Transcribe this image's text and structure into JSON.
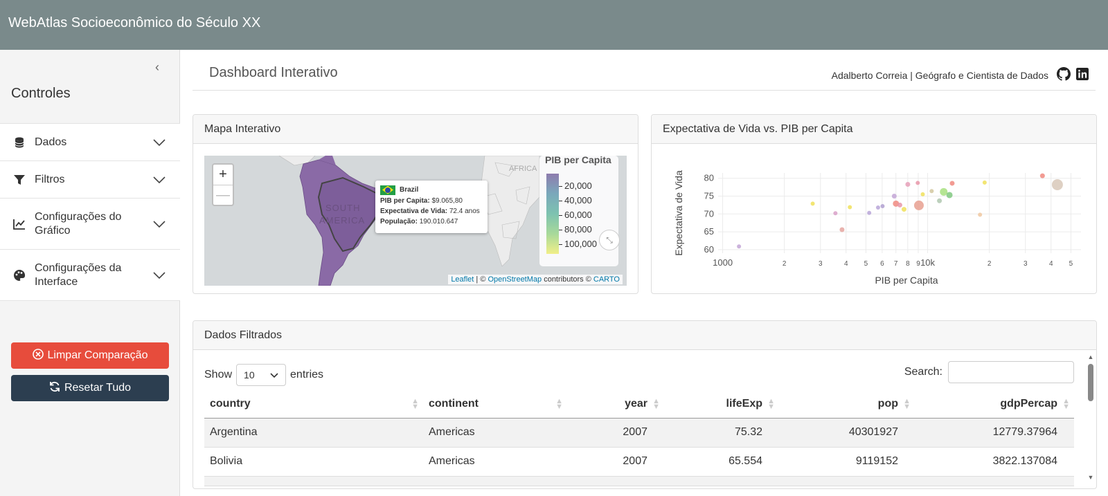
{
  "app": {
    "title": "WebAtlas Socioeconômico do Século XX"
  },
  "sidebar": {
    "collapse_icon": "chevron-left-icon",
    "title": "Controles",
    "sections": [
      {
        "label": "Dados",
        "icon": "database-icon"
      },
      {
        "label": "Filtros",
        "icon": "filter-icon"
      },
      {
        "label": "Configurações do Gráfico",
        "icon": "chart-line-icon"
      },
      {
        "label": "Configurações da Interface",
        "icon": "palette-icon"
      }
    ],
    "clear_button": "Limpar Comparação",
    "reset_button": "Resetar Tudo",
    "clear_color": "#e74c3c",
    "reset_color": "#2c3e50"
  },
  "header": {
    "title": "Dashboard Interativo",
    "author": "Adalberto Correia | Geógrafo e Cientista de Dados",
    "links": [
      "github-icon",
      "linkedin-icon"
    ]
  },
  "map_card": {
    "title": "Mapa Interativo",
    "zoom_in": "+",
    "zoom_out": "—",
    "labels": {
      "continent": "SOUTH AMERICA",
      "continent_line1": "SOUTH",
      "continent_line2": "AMERICA",
      "africa": "AFRICA"
    },
    "legend": {
      "title": "PIB per Capita",
      "ticks": [
        "20,000",
        "40,000",
        "60,000",
        "80,000",
        "100,000"
      ]
    },
    "tooltip": {
      "country": "Brazil",
      "gdp_label": "PIB per Capita:",
      "gdp_value": "$9.065,80",
      "life_label": "Expectativa de Vida:",
      "life_value": "72.4 anos",
      "pop_label": "População:",
      "pop_value": "190.010.647"
    },
    "attribution": {
      "leaflet": "Leaflet",
      "sep": " | © ",
      "osm": "OpenStreetMap",
      "contrib": " contributors © ",
      "carto": "CARTO"
    }
  },
  "scatter_card": {
    "title": "Expectativa de Vida vs. PIB per Capita"
  },
  "chart_data": {
    "type": "scatter",
    "title": "",
    "xlabel": "PIB per Capita",
    "ylabel": "Expectativa de Vida",
    "x_scale": "log",
    "xlim": [
      950,
      56000
    ],
    "ylim": [
      59,
      81.5
    ],
    "x_tick_labels": [
      {
        "v": 1000,
        "t": "1000"
      },
      {
        "v": 2000,
        "t": "2"
      },
      {
        "v": 3000,
        "t": "3"
      },
      {
        "v": 4000,
        "t": "4"
      },
      {
        "v": 5000,
        "t": "5"
      },
      {
        "v": 6000,
        "t": "6"
      },
      {
        "v": 7000,
        "t": "7"
      },
      {
        "v": 8000,
        "t": "8"
      },
      {
        "v": 9000,
        "t": "9"
      },
      {
        "v": 10000,
        "t": "10k"
      },
      {
        "v": 20000,
        "t": "2"
      },
      {
        "v": 30000,
        "t": "3"
      },
      {
        "v": 40000,
        "t": "4"
      },
      {
        "v": 50000,
        "t": "5"
      }
    ],
    "y_ticks": [
      60,
      65,
      70,
      75,
      80
    ],
    "grid": true,
    "points": [
      {
        "x": 1201,
        "y": 60.9,
        "size": 3,
        "color": "#c3a6d6"
      },
      {
        "x": 2749,
        "y": 72.9,
        "size": 3,
        "color": "#f0e05a"
      },
      {
        "x": 3548,
        "y": 70.2,
        "size": 3,
        "color": "#d8a0c8"
      },
      {
        "x": 3822,
        "y": 65.6,
        "size": 3.5,
        "color": "#e5a6a0"
      },
      {
        "x": 4173,
        "y": 71.9,
        "size": 3,
        "color": "#f0e05a"
      },
      {
        "x": 5186,
        "y": 70.3,
        "size": 3,
        "color": "#b8a6d8"
      },
      {
        "x": 5728,
        "y": 71.8,
        "size": 3,
        "color": "#b8a6d8"
      },
      {
        "x": 6025,
        "y": 72.2,
        "size": 3,
        "color": "#b0a0d0"
      },
      {
        "x": 6873,
        "y": 75.0,
        "size": 3.5,
        "color": "#c3a6d6"
      },
      {
        "x": 7006,
        "y": 72.9,
        "size": 4.5,
        "color": "#f08a80"
      },
      {
        "x": 7320,
        "y": 72.5,
        "size": 3.5,
        "color": "#e897a8"
      },
      {
        "x": 7670,
        "y": 71.3,
        "size": 3.5,
        "color": "#f0e05a"
      },
      {
        "x": 8002,
        "y": 78.3,
        "size": 3.5,
        "color": "#e6a0b8"
      },
      {
        "x": 8948,
        "y": 78.7,
        "size": 3,
        "color": "#e897a8"
      },
      {
        "x": 9066,
        "y": 72.4,
        "size": 7,
        "color": "#e8a090"
      },
      {
        "x": 9465,
        "y": 75.5,
        "size": 3,
        "color": "#f0e05a"
      },
      {
        "x": 10461,
        "y": 76.4,
        "size": 3,
        "color": "#d2c8a0"
      },
      {
        "x": 11416,
        "y": 73.7,
        "size": 3.5,
        "color": "#b0c8b0"
      },
      {
        "x": 11978,
        "y": 76.2,
        "size": 5.5,
        "color": "#a8e080"
      },
      {
        "x": 12779,
        "y": 75.3,
        "size": 4.5,
        "color": "#80c880"
      },
      {
        "x": 13172,
        "y": 78.6,
        "size": 3.5,
        "color": "#f08a80"
      },
      {
        "x": 18009,
        "y": 69.8,
        "size": 3,
        "color": "#f0c8a0"
      },
      {
        "x": 18971,
        "y": 78.8,
        "size": 3,
        "color": "#f0e05a"
      },
      {
        "x": 36319,
        "y": 80.7,
        "size": 3.5,
        "color": "#f08a80"
      },
      {
        "x": 42952,
        "y": 78.2,
        "size": 8,
        "color": "#d8c8b8"
      }
    ]
  },
  "table_card": {
    "title": "Dados Filtrados",
    "show_label": "Show",
    "entries_value": "10",
    "entries_label": "entries",
    "search_label": "Search:",
    "columns": [
      "country",
      "continent",
      "year",
      "lifeExp",
      "pop",
      "gdpPercap"
    ],
    "rows": [
      [
        "Argentina",
        "Americas",
        "2007",
        "75.32",
        "40301927",
        "12779.37964"
      ],
      [
        "Bolivia",
        "Americas",
        "2007",
        "65.554",
        "9119152",
        "3822.137084"
      ]
    ]
  }
}
